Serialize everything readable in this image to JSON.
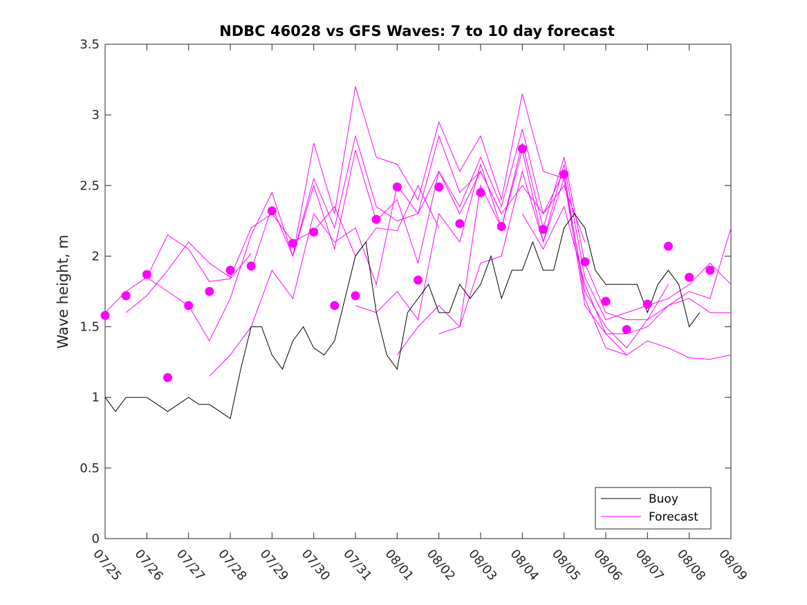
{
  "chart_data": {
    "type": "line",
    "title": "NDBC 46028 vs GFS Waves: 7 to 10 day forecast",
    "xlabel": "",
    "ylabel": "Wave height, m",
    "ylim": [
      0,
      3.5
    ],
    "yticks": [
      "0",
      "0.5",
      "1",
      "1.5",
      "2",
      "2.5",
      "3",
      "3.5"
    ],
    "xlim": [
      0,
      15
    ],
    "xtick_labels": [
      "07/25",
      "07/26",
      "07/27",
      "07/28",
      "07/29",
      "07/30",
      "07/31",
      "08/01",
      "08/02",
      "08/03",
      "08/04",
      "08/05",
      "08/06",
      "08/07",
      "08/08",
      "08/09"
    ],
    "grid": false,
    "legend": {
      "position": "bottom-right",
      "entries": [
        "Buoy",
        "Forecast"
      ]
    },
    "colors": {
      "buoy": "#000000",
      "forecast": "#ff00ff"
    },
    "buoy": {
      "name": "Buoy",
      "x": [
        0,
        0.25,
        0.5,
        0.75,
        1,
        1.25,
        1.5,
        1.75,
        2,
        2.25,
        2.5,
        2.75,
        3,
        3.25,
        3.5,
        3.75,
        4,
        4.25,
        4.5,
        4.75,
        5,
        5.25,
        5.5,
        5.75,
        6,
        6.25,
        6.5,
        6.75,
        7,
        7.25,
        7.5,
        7.75,
        8,
        8.25,
        8.5,
        8.75,
        9,
        9.25,
        9.5,
        9.75,
        10,
        10.25,
        10.5,
        10.75,
        11,
        11.25,
        11.5,
        11.75,
        12,
        12.25,
        12.5,
        12.75,
        13,
        13.25,
        13.5,
        13.75,
        14,
        14.25
      ],
      "y": [
        1.0,
        0.9,
        1.0,
        1.0,
        1.0,
        0.95,
        0.9,
        0.95,
        1.0,
        0.95,
        0.95,
        0.9,
        0.85,
        1.2,
        1.5,
        1.5,
        1.3,
        1.2,
        1.4,
        1.5,
        1.35,
        1.3,
        1.4,
        1.7,
        2.0,
        2.1,
        1.6,
        1.3,
        1.2,
        1.6,
        1.7,
        1.8,
        1.6,
        1.6,
        1.8,
        1.7,
        1.8,
        2.0,
        1.7,
        1.9,
        1.9,
        2.1,
        1.9,
        1.9,
        2.2,
        2.3,
        2.2,
        1.9,
        1.8,
        1.8,
        1.8,
        1.8,
        1.6,
        1.8,
        1.9,
        1.8,
        1.5,
        1.6
      ]
    },
    "forecast_runs": [
      {
        "x": [
          0,
          0.5,
          1,
          1.5,
          2,
          2.5,
          3,
          3.5
        ],
        "y": [
          1.6,
          1.75,
          1.85,
          2.15,
          2.05,
          1.82,
          1.84,
          2.02
        ]
      },
      {
        "x": [
          0.5,
          1,
          1.5,
          2,
          2.5,
          3,
          3.5,
          4,
          4.5,
          5,
          5.5,
          6,
          6.5,
          7,
          7.5,
          8
        ],
        "y": [
          1.6,
          1.72,
          1.9,
          2.1,
          1.95,
          1.85,
          2.2,
          2.3,
          2.1,
          2.18,
          2.35,
          2.0,
          2.2,
          2.18,
          2.5,
          2.2
        ]
      },
      {
        "x": [
          2.5,
          3,
          3.5,
          4,
          4.5,
          5,
          5.5,
          6,
          6.5,
          7,
          7.5,
          8,
          8.5,
          9,
          9.5,
          10,
          10.5,
          11,
          11.5
        ],
        "y": [
          1.15,
          1.3,
          1.5,
          1.9,
          1.7,
          2.3,
          2.1,
          2.2,
          1.8,
          2.5,
          2.3,
          2.6,
          2.3,
          2.6,
          2.3,
          2.5,
          2.3,
          2.5,
          2.1
        ]
      },
      {
        "x": [
          1,
          1.5,
          2,
          2.5,
          3,
          3.5,
          4,
          4.5,
          5,
          5.5,
          6,
          6.5,
          7,
          7.5,
          8,
          8.5,
          9,
          9.5
        ],
        "y": [
          1.85,
          1.75,
          1.65,
          1.4,
          1.7,
          2.15,
          2.45,
          2.0,
          2.55,
          2.2,
          2.85,
          2.35,
          2.25,
          2.3,
          2.85,
          2.45,
          2.6,
          2.3
        ]
      },
      {
        "x": [
          3.5,
          4,
          4.5,
          5,
          5.5,
          6,
          6.5,
          7,
          7.5,
          8,
          8.5,
          9,
          9.5,
          10,
          10.5,
          11,
          11.5,
          12,
          12.5
        ],
        "y": [
          1.9,
          2.35,
          2.0,
          2.5,
          2.05,
          2.75,
          2.25,
          2.4,
          1.95,
          2.6,
          2.35,
          2.7,
          2.35,
          2.9,
          2.3,
          2.6,
          1.7,
          1.35,
          1.3
        ]
      },
      {
        "x": [
          4.5,
          5,
          5.5,
          6,
          6.5,
          7,
          7.5,
          8,
          8.5,
          9,
          9.5,
          10,
          10.5,
          11,
          11.5,
          12,
          12.5,
          13,
          13.5
        ],
        "y": [
          2.0,
          2.8,
          2.3,
          3.2,
          2.7,
          2.65,
          2.4,
          2.95,
          2.6,
          2.85,
          2.4,
          3.15,
          2.6,
          2.55,
          1.75,
          1.5,
          1.35,
          1.55,
          1.8
        ]
      },
      {
        "x": [
          6,
          6.5,
          7,
          7.5,
          8,
          8.5,
          9,
          9.5,
          10,
          10.5,
          11,
          11.5,
          12,
          12.5,
          13,
          13.5,
          14,
          14.5,
          15
        ],
        "y": [
          1.65,
          1.6,
          1.75,
          1.55,
          2.3,
          2.1,
          2.65,
          2.2,
          2.8,
          2.2,
          2.7,
          1.95,
          1.6,
          1.55,
          1.55,
          1.65,
          1.75,
          1.7,
          2.2
        ]
      },
      {
        "x": [
          7,
          7.5,
          8,
          8.5,
          9,
          9.5,
          10,
          10.5,
          11,
          11.5,
          12,
          12.5,
          13,
          13.5,
          14,
          14.5,
          15
        ],
        "y": [
          1.3,
          1.5,
          1.65,
          1.5,
          2.5,
          2.2,
          2.75,
          2.1,
          2.65,
          1.85,
          1.55,
          1.6,
          1.65,
          1.7,
          1.8,
          1.95,
          1.8
        ]
      },
      {
        "x": [
          8,
          8.5,
          9,
          9.5,
          10,
          10.5,
          11,
          11.5,
          12,
          12.5,
          13,
          13.5,
          14,
          14.5,
          15
        ],
        "y": [
          1.45,
          1.5,
          1.95,
          2.0,
          2.6,
          2.1,
          2.55,
          1.65,
          1.45,
          1.45,
          1.5,
          1.65,
          1.7,
          1.6,
          1.6
        ]
      },
      {
        "x": [
          10,
          10.5,
          11,
          11.5,
          12,
          12.5,
          13,
          13.5,
          14,
          14.5,
          15
        ],
        "y": [
          2.3,
          2.05,
          2.35,
          1.8,
          1.45,
          1.3,
          1.4,
          1.35,
          1.28,
          1.27,
          1.3
        ]
      }
    ],
    "forecast_points": {
      "name": "Forecast",
      "x": [
        0,
        0.5,
        1,
        1.5,
        2,
        2.5,
        3,
        3.5,
        4,
        4.5,
        5,
        5.5,
        6,
        6.5,
        7,
        7.5,
        8,
        8.5,
        9,
        9.5,
        10,
        10.5,
        11,
        11.5,
        12,
        12.5,
        13,
        13.5,
        14,
        14.5
      ],
      "y": [
        1.58,
        1.72,
        1.87,
        1.14,
        1.65,
        1.75,
        1.9,
        1.93,
        2.32,
        2.09,
        2.17,
        1.65,
        1.72,
        2.26,
        2.49,
        1.83,
        2.49,
        2.23,
        2.45,
        2.21,
        2.76,
        2.19,
        2.58,
        1.96,
        1.68,
        1.48,
        1.66,
        2.07,
        1.85,
        1.9
      ]
    }
  }
}
